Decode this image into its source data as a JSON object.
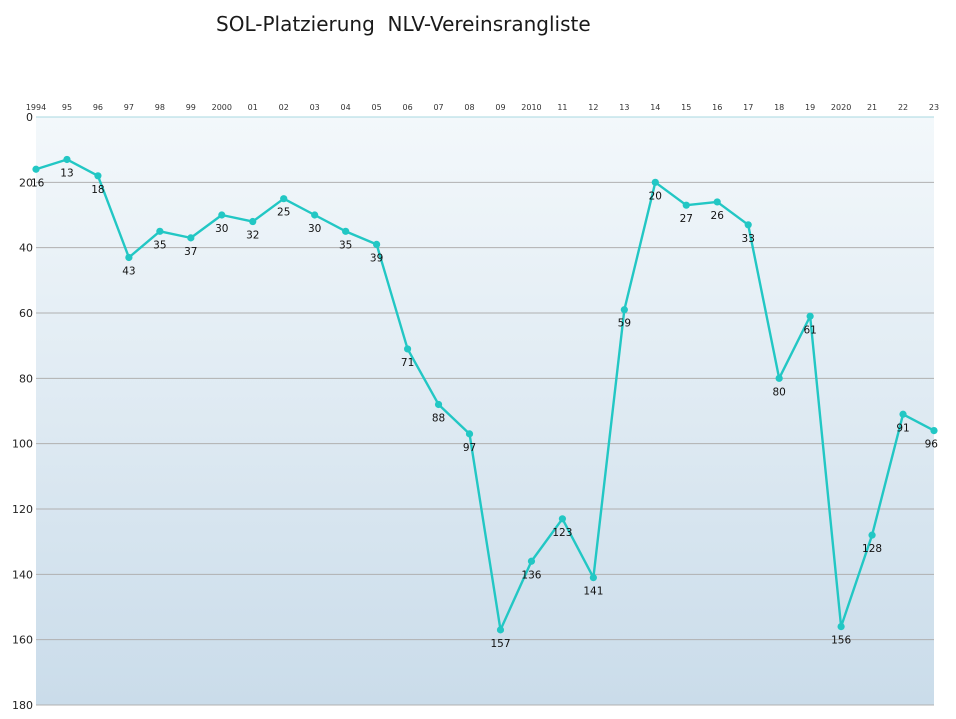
{
  "title": "SOL-Platzierung  NLV-Vereinsrangliste",
  "colors": {
    "line": "#22c7c4",
    "grid": "#b0b0b0",
    "bg_top": "#f3f8fb",
    "bg_bottom": "#cadcea"
  },
  "chart_data": {
    "type": "line",
    "title": "SOL-Platzierung  NLV-Vereinsrangliste",
    "xlabel": "",
    "ylabel": "",
    "y_inverted": true,
    "ylim": [
      0,
      180
    ],
    "yticks": [
      0,
      20,
      40,
      60,
      80,
      100,
      120,
      140,
      160,
      180
    ],
    "x_axis_position": "top",
    "grid": true,
    "legend": "none",
    "categories": [
      "1994",
      "95",
      "96",
      "97",
      "98",
      "99",
      "2000",
      "01",
      "02",
      "03",
      "04",
      "05",
      "06",
      "07",
      "08",
      "09",
      "2010",
      "11",
      "12",
      "13",
      "14",
      "15",
      "16",
      "17",
      "18",
      "19",
      "2020",
      "21",
      "22",
      "23"
    ],
    "series": [
      {
        "values": [
          16,
          13,
          18,
          43,
          35,
          37,
          30,
          32,
          25,
          30,
          35,
          39,
          71,
          88,
          97,
          157,
          136,
          123,
          141,
          59,
          20,
          27,
          26,
          33,
          80,
          61,
          156,
          128,
          91,
          96
        ]
      }
    ]
  }
}
